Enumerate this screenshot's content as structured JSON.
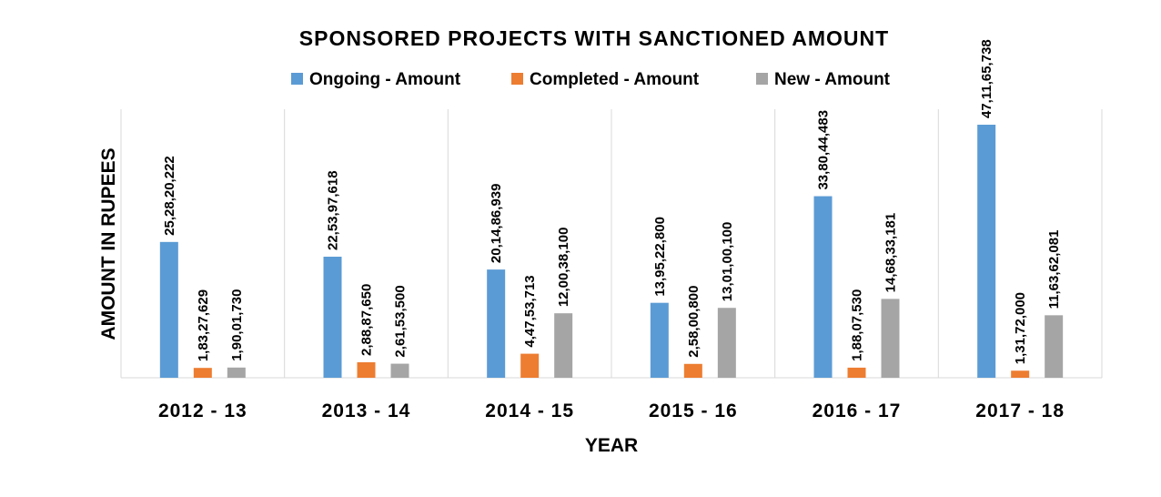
{
  "chart_data": {
    "type": "bar",
    "title": "SPONSORED PROJECTS WITH SANCTIONED AMOUNT",
    "xlabel": "YEAR",
    "ylabel": "AMOUNT IN RUPEES",
    "categories": [
      "2012 - 13",
      "2013 - 14",
      "2014 - 15",
      "2015 - 16",
      "2016 - 17",
      "2017 - 18"
    ],
    "series": [
      {
        "name": "Ongoing - Amount",
        "color": "#5B9BD5",
        "values": [
          252820222,
          225397618,
          201486939,
          139522800,
          338044483,
          471165738
        ],
        "labels": [
          "25,28,20,222",
          "22,53,97,618",
          "20,14,86,939",
          "13,95,22,800",
          "33,80,44,483",
          "47,11,65,738"
        ]
      },
      {
        "name": "Completed - Amount",
        "color": "#ED7D31",
        "values": [
          18327629,
          28887650,
          44753713,
          25800800,
          18807530,
          13172000
        ],
        "labels": [
          "1,83,27,629",
          "2,88,87,650",
          "4,47,53,713",
          "2,58,00,800",
          "1,88,07,530",
          "1,31,72,000"
        ]
      },
      {
        "name": "New - Amount",
        "color": "#A5A5A5",
        "values": [
          19001730,
          26153500,
          120038100,
          130100100,
          146833181,
          116362081
        ],
        "labels": [
          "1,90,01,730",
          "2,61,53,500",
          "12,00,38,100",
          "13,01,00,100",
          "14,68,33,181",
          "11,63,62,081"
        ]
      }
    ],
    "ylim": [
      0,
      500000000
    ],
    "grid": false,
    "legend_position": "top"
  }
}
